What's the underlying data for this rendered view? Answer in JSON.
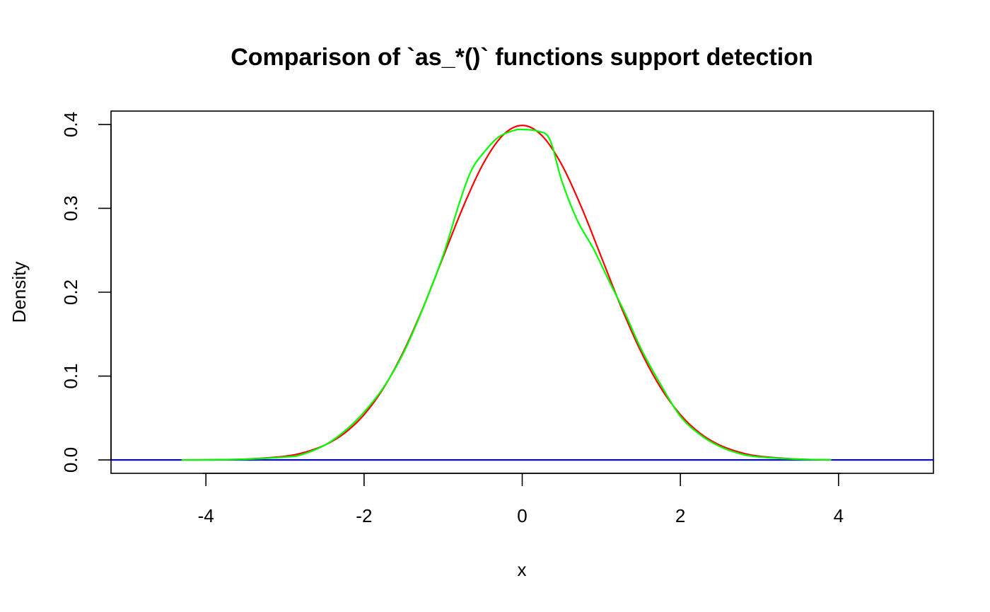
{
  "chart_data": {
    "type": "line",
    "title": "Comparison of `as_*()` functions support detection",
    "xlabel": "x",
    "ylabel": "Density",
    "xlim": [
      -5.2,
      5.2
    ],
    "ylim": [
      -0.016,
      0.416
    ],
    "x_ticks": [
      -4,
      -2,
      0,
      2,
      4
    ],
    "x_tick_labels": [
      "-4",
      "-2",
      "0",
      "2",
      "4"
    ],
    "y_ticks": [
      0.0,
      0.1,
      0.2,
      0.3,
      0.4
    ],
    "y_tick_labels": [
      "0.0",
      "0.1",
      "0.2",
      "0.3",
      "0.4"
    ],
    "grid": false,
    "legend": "none",
    "series": [
      {
        "color": "#0000ff",
        "x": [
          -5.2,
          -4.6,
          -4.3,
          4.0,
          4.4,
          5.2
        ],
        "y": [
          0,
          0,
          0,
          0,
          0,
          0
        ]
      },
      {
        "color": "#ff0000",
        "x": [
          -4.3,
          -4.0,
          -3.5,
          -3.0,
          -2.75,
          -2.5,
          -2.25,
          -2.0,
          -1.75,
          -1.5,
          -1.25,
          -1.0,
          -0.75,
          -0.5,
          -0.25,
          0.0,
          0.25,
          0.5,
          0.75,
          1.0,
          1.25,
          1.5,
          1.75,
          2.0,
          2.25,
          2.5,
          2.75,
          3.0,
          3.5,
          3.9
        ],
        "y": [
          4e-05,
          0.00013,
          0.0009,
          0.0044,
          0.0091,
          0.0175,
          0.0317,
          0.054,
          0.0863,
          0.1295,
          0.1826,
          0.242,
          0.3011,
          0.3521,
          0.3867,
          0.3989,
          0.3867,
          0.3521,
          0.3011,
          0.242,
          0.1826,
          0.1295,
          0.0863,
          0.054,
          0.0317,
          0.0175,
          0.0091,
          0.0044,
          0.0009,
          0.0002
        ]
      },
      {
        "color": "#00ff00",
        "x": [
          -4.3,
          -3.5,
          -3.0,
          -2.8,
          -2.5,
          -2.25,
          -2.0,
          -1.75,
          -1.5,
          -1.25,
          -1.0,
          -0.8,
          -0.65,
          -0.5,
          -0.3,
          -0.1,
          0.0,
          0.2,
          0.35,
          0.5,
          0.7,
          0.9,
          1.1,
          1.3,
          1.5,
          1.75,
          2.0,
          2.25,
          2.5,
          2.75,
          3.0,
          3.5,
          3.9
        ],
        "y": [
          0.0,
          0.0008,
          0.0035,
          0.006,
          0.0175,
          0.034,
          0.057,
          0.087,
          0.128,
          0.182,
          0.244,
          0.305,
          0.344,
          0.365,
          0.385,
          0.393,
          0.394,
          0.392,
          0.382,
          0.333,
          0.285,
          0.252,
          0.213,
          0.175,
          0.133,
          0.09,
          0.052,
          0.03,
          0.016,
          0.0075,
          0.0035,
          0.0008,
          0.0002
        ]
      }
    ]
  }
}
